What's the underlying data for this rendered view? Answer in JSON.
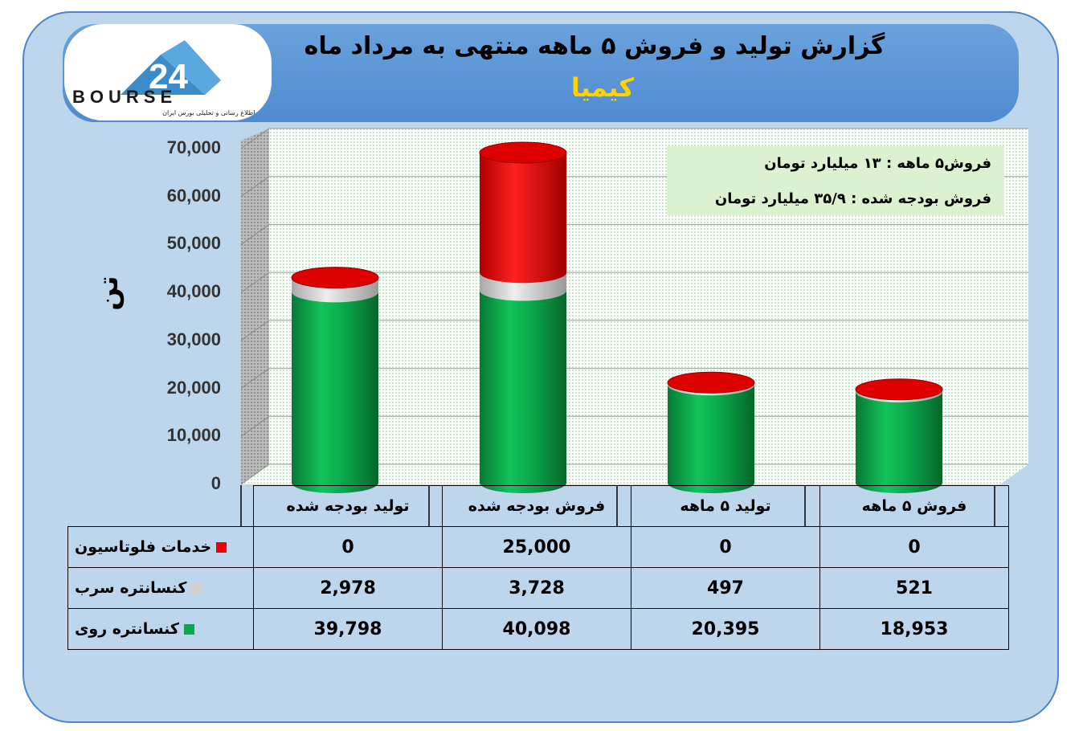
{
  "header": {
    "title": "گزارش تولید و فروش ۵ ماهه منتهی به مرداد ماه",
    "subtitle": "کیمیا"
  },
  "logo": {
    "brand": "BOURSE",
    "number": "24",
    "tagline": "پایگاه اطلاع رسانی و تحلیلی بورس ایران"
  },
  "annotation": {
    "line1": "فروش۵ ماهه : ۱۳ میلیارد تومان",
    "line2": "فروش بودجه شده : ۳۵/۹ میلیارد تومان"
  },
  "colors": {
    "zinc": "#0aa84a",
    "lead": "#d0d0d0",
    "flotation": "#ee0000"
  },
  "chart_data": {
    "type": "bar",
    "stacked": true,
    "ylabel": "تن",
    "ylim": [
      0,
      70000
    ],
    "yticks": [
      "0",
      "10,000",
      "20,000",
      "30,000",
      "40,000",
      "50,000",
      "60,000",
      "70,000"
    ],
    "categories": [
      "تولید بودجه شده",
      "فروش بودجه شده",
      "تولید ۵ ماهه",
      "فروش ۵ ماهه"
    ],
    "series": [
      {
        "name": "کنسانتره روی",
        "values": [
          39798,
          40098,
          20395,
          18953
        ],
        "labels": [
          "39,798",
          "40,098",
          "20,395",
          "18,953"
        ]
      },
      {
        "name": "کنسانتره سرب",
        "values": [
          2978,
          3728,
          497,
          521
        ],
        "labels": [
          "2,978",
          "3,728",
          "497",
          "521"
        ]
      },
      {
        "name": "خدمات فلوتاسیون",
        "values": [
          0,
          25000,
          0,
          0
        ],
        "labels": [
          "0",
          "25,000",
          "0",
          "0"
        ]
      }
    ],
    "grid": true,
    "legend": "data-table"
  }
}
